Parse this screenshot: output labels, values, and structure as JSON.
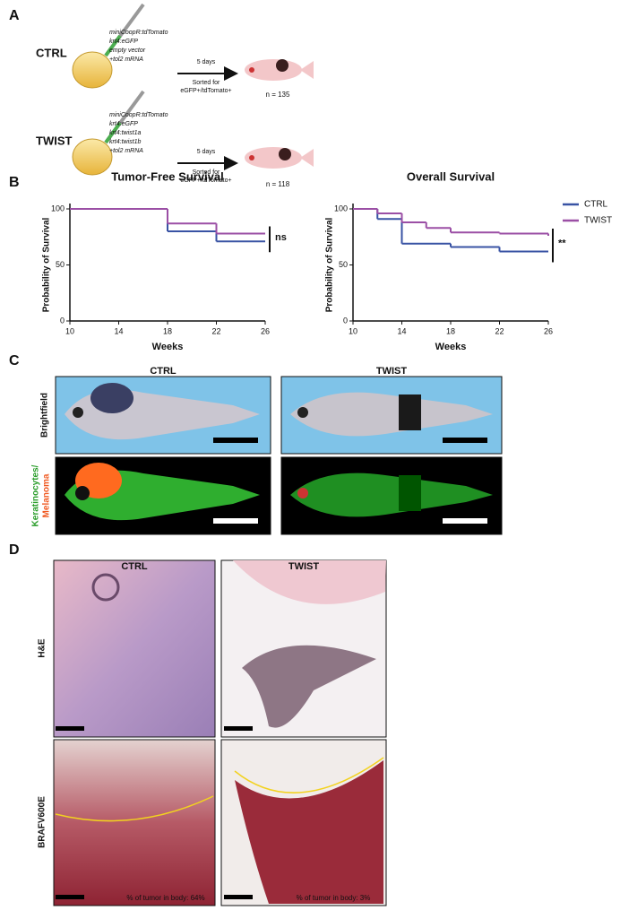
{
  "panel_a": {
    "label": "A",
    "rows": [
      {
        "group": "CTRL",
        "constructs": [
          "miniCoopR:tdTomato",
          "krt4:eGFP",
          "empty vector",
          "+tol2 mRNA"
        ],
        "arrow_top": "5 days",
        "arrow_bottom": [
          "Sorted for",
          "eGFP+/tdTomato+"
        ],
        "n": "n = 135"
      },
      {
        "group": "TWIST",
        "constructs": [
          "miniCoopR:tdTomato",
          "krt4:eGFP",
          "krt4:twist1a",
          "krt4:twist1b",
          "+tol2 mRNA"
        ],
        "arrow_top": "5 days",
        "arrow_bottom": [
          "Sorted for",
          "eGFP+/tdTomato+"
        ],
        "n": "n = 118"
      }
    ]
  },
  "panel_b": {
    "label": "B"
  },
  "chart_data": [
    {
      "type": "step",
      "title": "Tumor-Free Survival",
      "x_label": "Weeks",
      "y_label": "Probability of Survival",
      "xlim": [
        10,
        26
      ],
      "xticks": [
        10,
        14,
        18,
        22,
        26
      ],
      "ylim": [
        0,
        100
      ],
      "yticks": [
        0,
        50,
        100
      ],
      "annotation": "ns",
      "series": [
        {
          "color": "#3953a4",
          "x": [
            10,
            18,
            22,
            26
          ],
          "values": [
            100,
            80,
            71,
            71
          ]
        },
        {
          "color": "#9b4fa5",
          "x": [
            10,
            18,
            22,
            26
          ],
          "values": [
            100,
            87,
            78,
            78
          ]
        }
      ]
    },
    {
      "type": "step",
      "title": "Overall Survival",
      "x_label": "Weeks",
      "y_label": "Probability of Survival",
      "xlim": [
        10,
        26
      ],
      "xticks": [
        10,
        14,
        18,
        22,
        26
      ],
      "ylim": [
        0,
        100
      ],
      "yticks": [
        0,
        50,
        100
      ],
      "annotation": "**",
      "legend": "right",
      "series": [
        {
          "name": "CTRL",
          "color": "#3953a4",
          "x": [
            10,
            12,
            14,
            18,
            22,
            26
          ],
          "values": [
            100,
            91,
            69,
            66,
            62,
            62
          ]
        },
        {
          "name": "TWIST",
          "color": "#9b4fa5",
          "x": [
            10,
            12,
            14,
            16,
            18,
            22,
            26
          ],
          "values": [
            100,
            96,
            88,
            83,
            79,
            78,
            76
          ]
        }
      ]
    }
  ],
  "panel_c": {
    "label": "C",
    "columns": [
      "CTRL",
      "TWIST"
    ],
    "rows": [
      "Brightfield",
      [
        "Keratinocytes/",
        "Melanoma"
      ]
    ]
  },
  "panel_d": {
    "label": "D",
    "columns": [
      "CTRL",
      "TWIST"
    ],
    "rows": [
      "H&E",
      "BRAFV600E"
    ],
    "notes": [
      "% of tumor in body: 64%",
      "% of tumor in body: 3%"
    ]
  }
}
